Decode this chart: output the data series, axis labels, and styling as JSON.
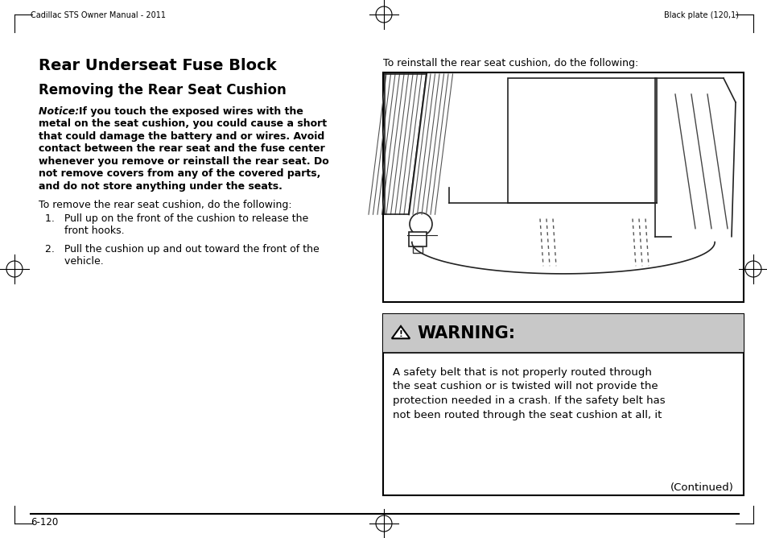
{
  "page_bg": "#ffffff",
  "header_left": "Cadillac STS Owner Manual - 2011",
  "header_right": "Black plate (120,1)",
  "footer_page": "6-120",
  "title": "Rear Underseat Fuse Block",
  "subtitle": "Removing the Rear Seat Cushion",
  "notice_lines": [
    [
      "Notice:  ",
      "If you touch the exposed wires with the"
    ],
    [
      "",
      "metal on the seat cushion, you could cause a short"
    ],
    [
      "",
      "that could damage the battery and or wires. Avoid"
    ],
    [
      "",
      "contact between the rear seat and the fuse center"
    ],
    [
      "",
      "whenever you remove or reinstall the rear seat. Do"
    ],
    [
      "",
      "not remove covers from any of the covered parts,"
    ],
    [
      "",
      "and do not store anything under the seats."
    ]
  ],
  "para1": "To remove the rear seat cushion, do the following:",
  "item1a": "1.   Pull up on the front of the cushion to release the",
  "item1b": "      front hooks.",
  "item2a": "2.   Pull the cushion up and out toward the front of the",
  "item2b": "      vehicle.",
  "right_para": "To reinstall the rear seat cushion, do the following:",
  "warning_body_lines": [
    "A safety belt that is not properly routed through",
    "the seat cushion or is twisted will not provide the",
    "protection needed in a crash. If the safety belt has",
    "not been routed through the seat cushion at all, it"
  ],
  "warning_continued": "(Continued)",
  "warning_header_bg": "#c8c8c8",
  "warning_border": "#000000",
  "img_bg": "#ffffff"
}
